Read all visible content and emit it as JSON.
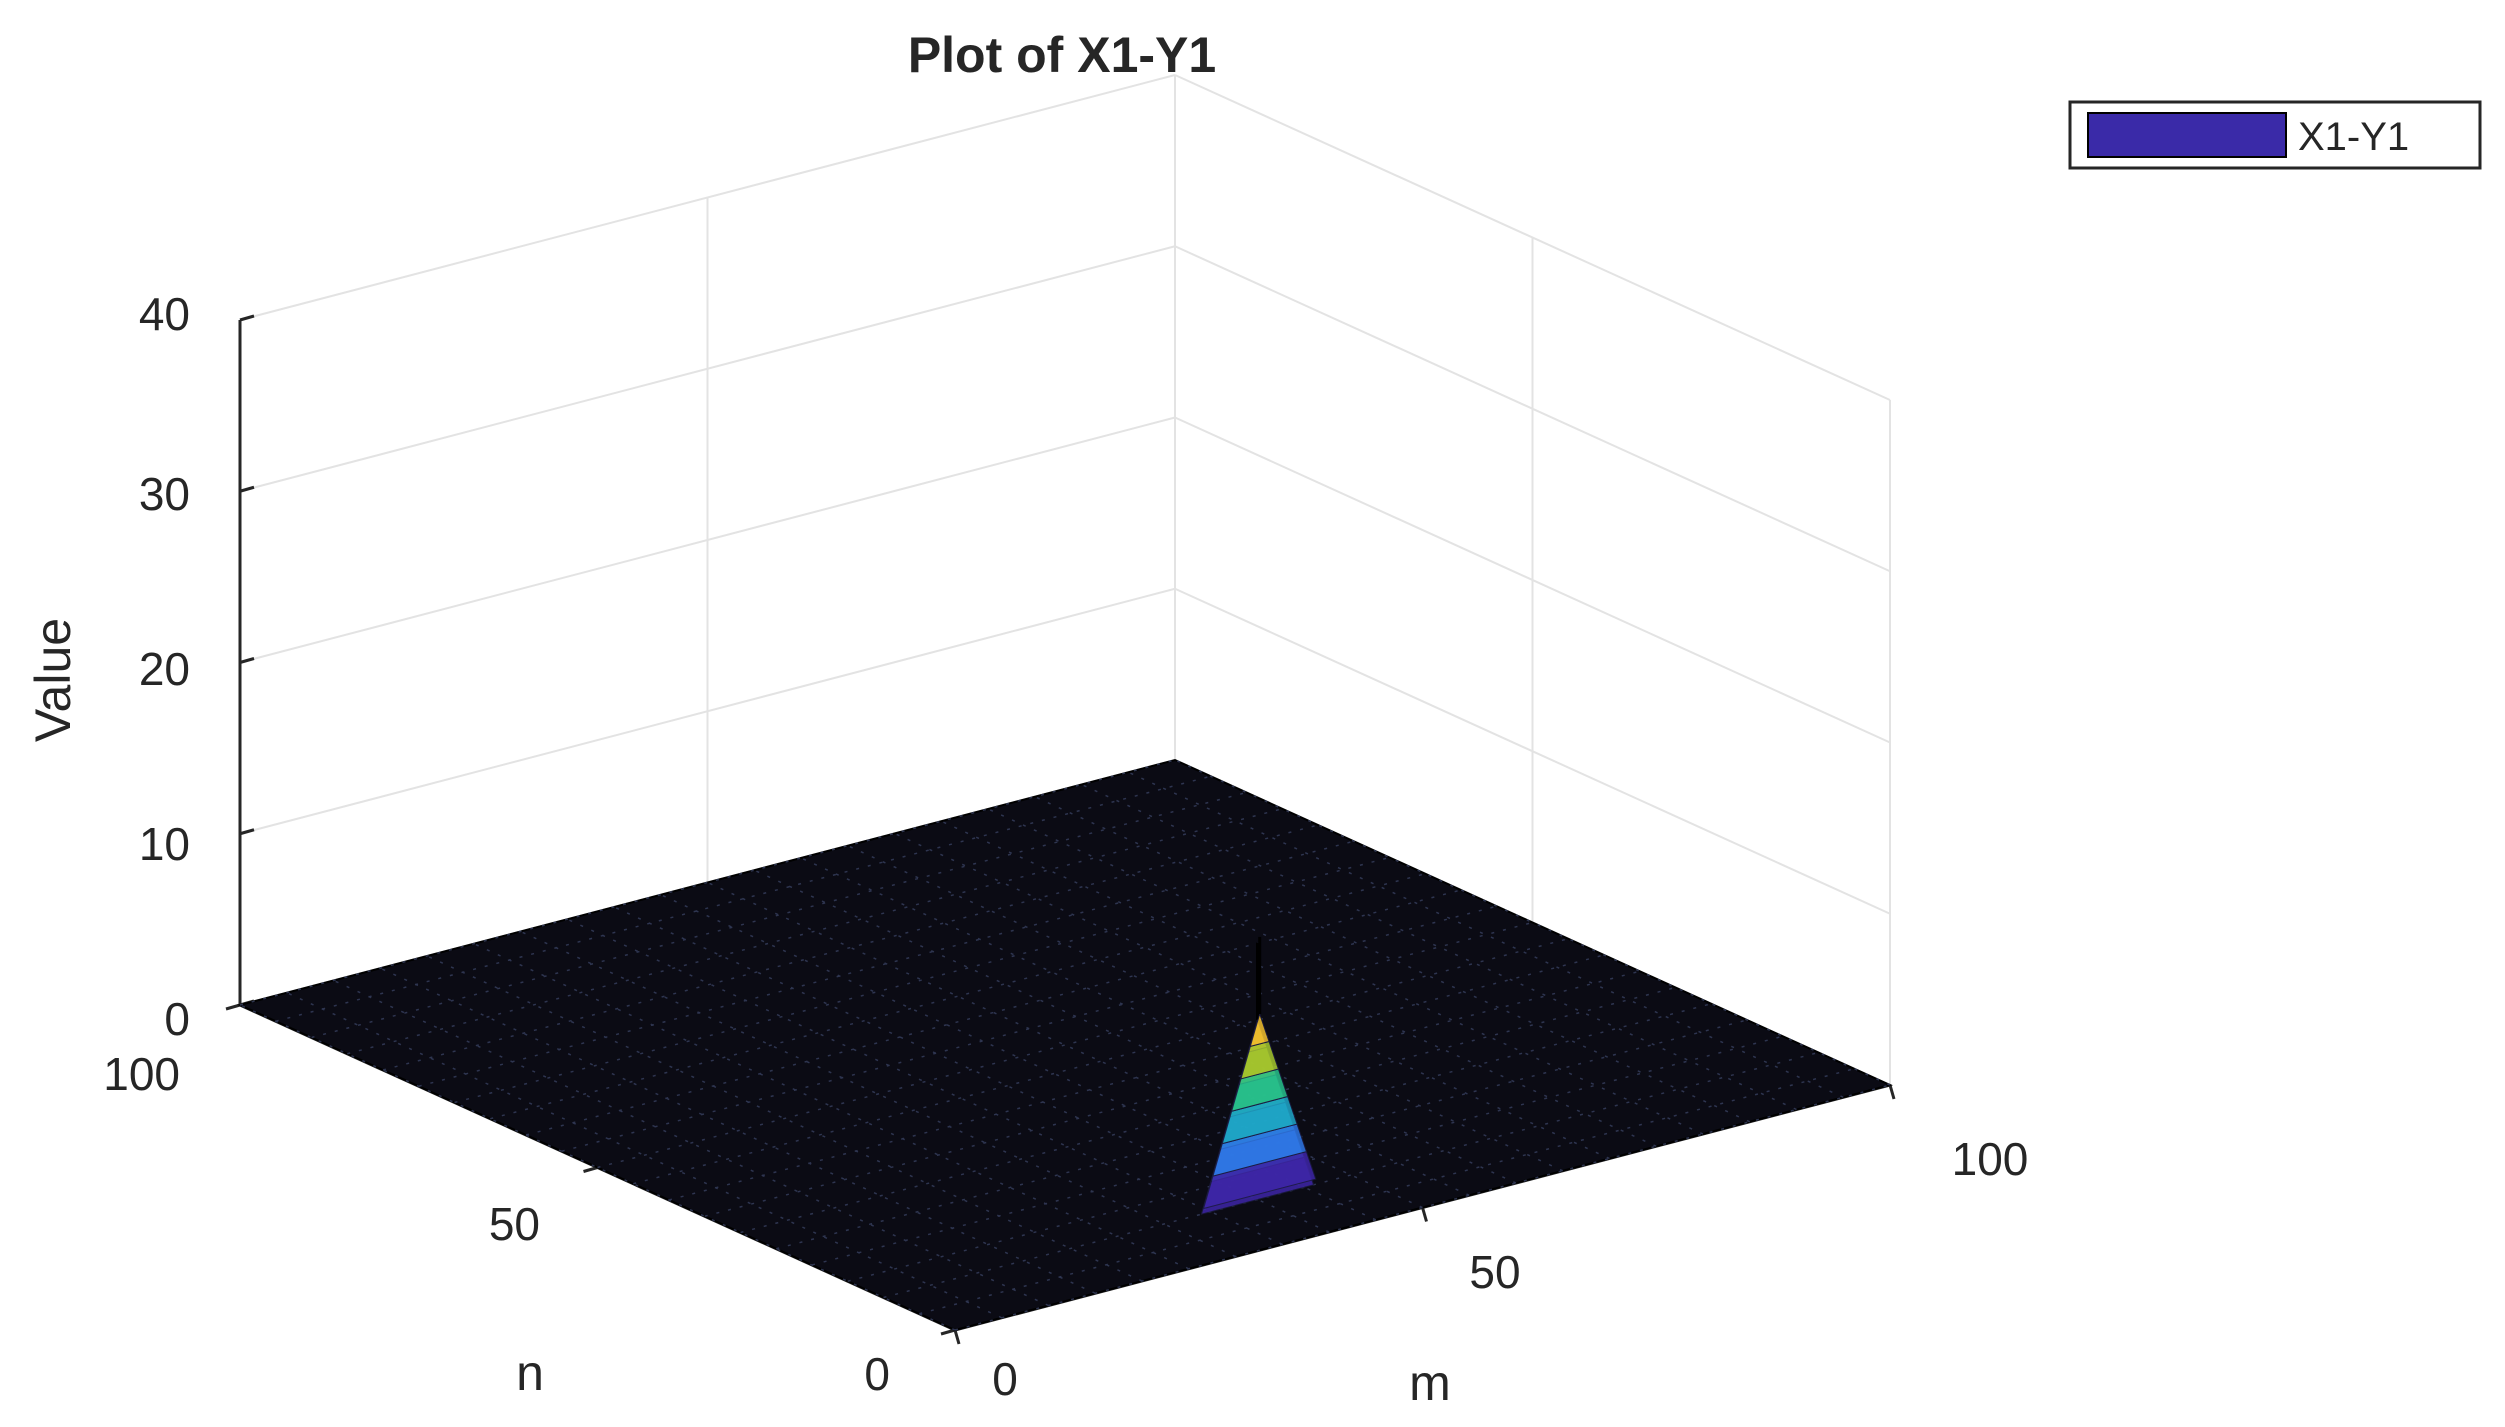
{
  "chart_data": {
    "type": "surface",
    "title": "Plot of X1-Y1",
    "xlabel": "m",
    "ylabel": "n",
    "zlabel": "Value",
    "xlim": [
      0,
      100
    ],
    "ylim": [
      0,
      100
    ],
    "zlim": [
      0,
      40
    ],
    "x_ticks": [
      "0",
      "50",
      "100"
    ],
    "y_ticks": [
      "0",
      "50",
      "100"
    ],
    "z_ticks": [
      "0",
      "10",
      "20",
      "30",
      "40"
    ],
    "grid": true,
    "legend": {
      "position": "top-right",
      "entries": [
        {
          "name": "X1-Y1",
          "color": "#3a2aa8"
        }
      ]
    },
    "colormap": "parula",
    "surface": {
      "grid_size": [
        100,
        100
      ],
      "baseline_value": 0,
      "peaks": [
        {
          "m": 40,
          "n": 10,
          "value": 15
        },
        {
          "m": 41,
          "n": 11,
          "value": 15
        }
      ]
    }
  }
}
